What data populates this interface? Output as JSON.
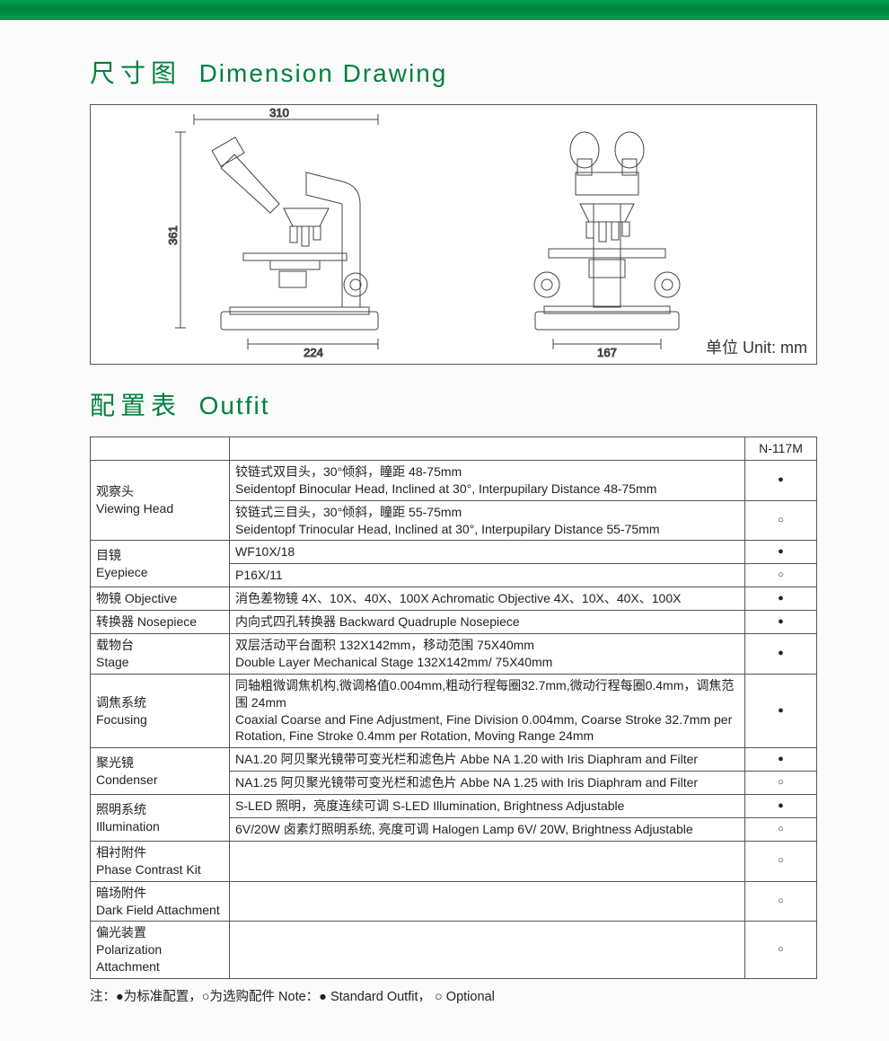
{
  "topbar_color": "#008040",
  "title_color": "#008040",
  "section1": {
    "title_cn": "尺寸图",
    "title_en": "Dimension  Drawing",
    "dims": {
      "width": "310",
      "height": "361",
      "depth": "224",
      "front": "167"
    },
    "unit_label": "单位 Unit:  mm"
  },
  "section2": {
    "title_cn": "配置表",
    "title_en": "Outfit",
    "model": "N-117M",
    "symbols": {
      "std": "●",
      "opt": "○"
    },
    "rows": [
      {
        "cat_cn": "观察头",
        "cat_en": "Viewing Head",
        "items": [
          {
            "desc": "铰链式双目头，30°倾斜，瞳距 48-75mm\nSeidentopf Binocular Head, Inclined at 30°, Interpupilary Distance 48-75mm",
            "mark": "std"
          },
          {
            "desc": "铰链式三目头，30°倾斜，瞳距 55-75mm\nSeidentopf Trinocular Head, Inclined at 30°, Interpupilary Distance 55-75mm",
            "mark": "opt"
          }
        ]
      },
      {
        "cat_cn": "目镜",
        "cat_en": "Eyepiece",
        "items": [
          {
            "desc": "WF10X/18",
            "mark": "std"
          },
          {
            "desc": "P16X/11",
            "mark": "opt"
          }
        ]
      },
      {
        "cat_cn": "物镜 Objective",
        "cat_en": "",
        "items": [
          {
            "desc": "消色差物镜  4X、10X、40X、100X    Achromatic Objective 4X、10X、40X、100X",
            "mark": "std"
          }
        ]
      },
      {
        "cat_cn": "转换器 Nosepiece",
        "cat_en": "",
        "items": [
          {
            "desc": "内向式四孔转换器    Backward Quadruple Nosepiece",
            "mark": "std"
          }
        ]
      },
      {
        "cat_cn": "载物台",
        "cat_en": "Stage",
        "items": [
          {
            "desc": "双层活动平台面积 132X142mm，移动范围 75X40mm\nDouble Layer Mechanical Stage 132X142mm/ 75X40mm",
            "mark": "std"
          }
        ]
      },
      {
        "cat_cn": "调焦系统",
        "cat_en": "Focusing",
        "items": [
          {
            "desc": "同轴粗微调焦机构,微调格值0.004mm,粗动行程每圈32.7mm,微动行程每圈0.4mm，调焦范围 24mm\nCoaxial Coarse and Fine Adjustment, Fine Division 0.004mm, Coarse Stroke 32.7mm per Rotation, Fine Stroke 0.4mm per Rotation, Moving Range 24mm",
            "mark": "std"
          }
        ]
      },
      {
        "cat_cn": "聚光镜",
        "cat_en": "Condenser",
        "items": [
          {
            "desc": "NA1.20 阿贝聚光镜带可变光栏和滤色片  Abbe NA 1.20 with Iris Diaphram and Filter",
            "mark": "std"
          },
          {
            "desc": "NA1.25 阿贝聚光镜带可变光栏和滤色片  Abbe NA 1.25 with Iris Diaphram and Filter",
            "mark": "opt"
          }
        ]
      },
      {
        "cat_cn": "照明系统",
        "cat_en": "Illumination",
        "items": [
          {
            "desc": "S-LED 照明，亮度连续可调    S-LED Illumination, Brightness Adjustable",
            "mark": "std"
          },
          {
            "desc": "6V/20W 卤素灯照明系统, 亮度可调    Halogen Lamp 6V/ 20W, Brightness Adjustable",
            "mark": "opt"
          }
        ]
      },
      {
        "cat_cn": "相衬附件",
        "cat_en": "Phase Contrast Kit",
        "items": [
          {
            "desc": "",
            "mark": "opt"
          }
        ]
      },
      {
        "cat_cn": "暗场附件",
        "cat_en": "Dark Field Attachment",
        "items": [
          {
            "desc": "",
            "mark": "opt"
          }
        ]
      },
      {
        "cat_cn": "偏光装置",
        "cat_en": "Polarization Attachment",
        "items": [
          {
            "desc": "",
            "mark": "opt"
          }
        ]
      }
    ],
    "footnote": "注：●为标准配置，○为选购配件   Note：● Standard Outfit， ○ Optional"
  }
}
